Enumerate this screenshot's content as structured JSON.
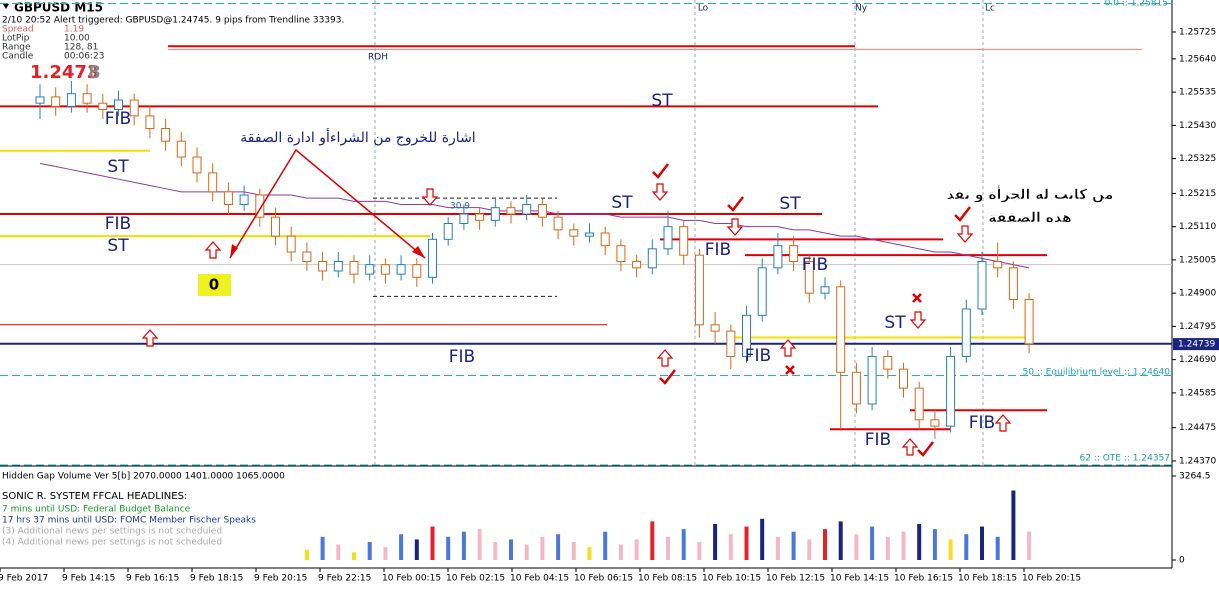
{
  "header": {
    "symbol": "GBPUSD  M15",
    "alert": "2/10 20:52  Alert triggered: GBPUSD@1.24745.  9 pips from Trendline 33393.",
    "rows": [
      [
        "Spread",
        "1.19"
      ],
      [
        "LotPip",
        "10.00"
      ],
      [
        "Range",
        "128, 81"
      ],
      [
        "Candle",
        "00:06:23"
      ]
    ],
    "price_main": "1.2473",
    "price_pip": "8"
  },
  "chart_data": {
    "type": "candlestick",
    "up_color": "#2a7fc1",
    "down_color": "#d2691e",
    "ma_color": "#8e3a9e",
    "ylim": [
      1.24354,
      1.25826
    ],
    "yticks": [
      1.25725,
      {
        "value": 1.2564,
        "label": "1.25640"
      },
      1.25535,
      {
        "value": 1.2543,
        "label": "1.25430"
      },
      1.25325,
      1.25215,
      {
        "value": 1.2511,
        "label": "1.25110"
      },
      1.25005,
      {
        "value": 1.249,
        "label": "1.24900"
      },
      1.24795,
      {
        "value": 1.2469,
        "label": "1.24690"
      },
      1.24585,
      1.24475,
      {
        "value": 1.2437,
        "label": "1.24370"
      }
    ],
    "current_price": 1.24739,
    "x": [
      "9 Feb 2017",
      "9 Feb 14:15",
      "9 Feb 16:15",
      "9 Feb 18:15",
      "9 Feb 20:15",
      "9 Feb 22:15",
      "10 Feb 00:15",
      "10 Feb 02:15",
      "10 Feb 04:15",
      "10 Feb 06:15",
      "10 Feb 08:15",
      "10 Feb 10:15",
      "10 Feb 12:15",
      "10 Feb 14:15",
      "10 Feb 16:15",
      "10 Feb 18:15",
      "10 Feb 20:15"
    ],
    "ohlc": [
      [
        1.255,
        1.2556,
        1.2545,
        1.2552
      ],
      [
        1.2552,
        1.2555,
        1.2546,
        1.2549
      ],
      [
        1.2549,
        1.2557,
        1.2547,
        1.2553
      ],
      [
        1.2553,
        1.2556,
        1.2547,
        1.255
      ],
      [
        1.255,
        1.2553,
        1.2545,
        1.2548
      ],
      [
        1.2548,
        1.2554,
        1.2546,
        1.2551
      ],
      [
        1.2551,
        1.2553,
        1.2543,
        1.2546
      ],
      [
        1.2546,
        1.2549,
        1.2539,
        1.2542
      ],
      [
        1.2542,
        1.2545,
        1.2535,
        1.2538
      ],
      [
        1.2538,
        1.2541,
        1.253,
        1.2533
      ],
      [
        1.2533,
        1.2536,
        1.2525,
        1.2528
      ],
      [
        1.2528,
        1.2531,
        1.2519,
        1.2522
      ],
      [
        1.2522,
        1.2525,
        1.2515,
        1.2518
      ],
      [
        1.2518,
        1.2524,
        1.2516,
        1.2521
      ],
      [
        1.2521,
        1.2523,
        1.2511,
        1.2514
      ],
      [
        1.2514,
        1.2517,
        1.2505,
        1.2508
      ],
      [
        1.2508,
        1.2511,
        1.25,
        1.2503
      ],
      [
        1.2503,
        1.2506,
        1.2497,
        1.25
      ],
      [
        1.25,
        1.2503,
        1.2494,
        1.2497
      ],
      [
        1.2497,
        1.2503,
        1.2495,
        1.25
      ],
      [
        1.25,
        1.2502,
        1.2493,
        1.2496
      ],
      [
        1.2496,
        1.2502,
        1.2494,
        1.2499
      ],
      [
        1.2499,
        1.2501,
        1.2493,
        1.2496
      ],
      [
        1.2496,
        1.2502,
        1.2494,
        1.2499
      ],
      [
        1.2499,
        1.2501,
        1.2492,
        1.2495
      ],
      [
        1.2495,
        1.2509,
        1.2493,
        1.2507
      ],
      [
        1.2507,
        1.2514,
        1.2505,
        1.2512
      ],
      [
        1.2512,
        1.2518,
        1.251,
        1.2515
      ],
      [
        1.2515,
        1.2517,
        1.251,
        1.2513
      ],
      [
        1.2513,
        1.252,
        1.2511,
        1.2517
      ],
      [
        1.2517,
        1.2519,
        1.2512,
        1.2515
      ],
      [
        1.2515,
        1.2521,
        1.2513,
        1.2518
      ],
      [
        1.2518,
        1.252,
        1.2511,
        1.2514
      ],
      [
        1.2514,
        1.2516,
        1.2507,
        1.251
      ],
      [
        1.251,
        1.2512,
        1.2505,
        1.2508
      ],
      [
        1.2508,
        1.2512,
        1.2506,
        1.2509
      ],
      [
        1.2509,
        1.2511,
        1.2502,
        1.2505
      ],
      [
        1.2505,
        1.2507,
        1.2497,
        1.25
      ],
      [
        1.25,
        1.2502,
        1.2495,
        1.2498
      ],
      [
        1.2498,
        1.2507,
        1.2496,
        1.2504
      ],
      [
        1.2504,
        1.2516,
        1.2502,
        1.2511
      ],
      [
        1.2511,
        1.2513,
        1.2499,
        1.2502
      ],
      [
        1.2502,
        1.2504,
        1.2476,
        1.248
      ],
      [
        1.248,
        1.2484,
        1.2474,
        1.2478
      ],
      [
        1.2478,
        1.248,
        1.2466,
        1.247
      ],
      [
        1.247,
        1.2486,
        1.2468,
        1.2483
      ],
      [
        1.2483,
        1.2501,
        1.2481,
        1.2498
      ],
      [
        1.2498,
        1.2509,
        1.2496,
        1.2505
      ],
      [
        1.2505,
        1.2508,
        1.2497,
        1.25
      ],
      [
        1.25,
        1.2502,
        1.2487,
        1.249
      ],
      [
        1.249,
        1.2495,
        1.2488,
        1.2492
      ],
      [
        1.2492,
        1.2494,
        1.2447,
        1.2465
      ],
      [
        1.2465,
        1.2468,
        1.2452,
        1.2455
      ],
      [
        1.2455,
        1.2473,
        1.2453,
        1.247
      ],
      [
        1.247,
        1.2472,
        1.2463,
        1.2466
      ],
      [
        1.2466,
        1.2468,
        1.2457,
        1.246
      ],
      [
        1.246,
        1.2462,
        1.2447,
        1.245
      ],
      [
        1.245,
        1.2453,
        1.2444,
        1.2448
      ],
      [
        1.2448,
        1.2473,
        1.2446,
        1.247
      ],
      [
        1.247,
        1.2488,
        1.2468,
        1.2485
      ],
      [
        1.2485,
        1.2503,
        1.2483,
        1.25
      ],
      [
        1.25,
        1.2506,
        1.2495,
        1.2498
      ],
      [
        1.2498,
        1.25,
        1.2485,
        1.2488
      ],
      [
        1.2488,
        1.249,
        1.2471,
        1.2474
      ]
    ],
    "ma": [
      1.2531,
      1.253,
      1.2529,
      1.2528,
      1.2527,
      1.2526,
      1.2525,
      1.2524,
      1.2523,
      1.2522,
      1.2522,
      1.2522,
      1.2522,
      1.2522,
      1.2521,
      1.2521,
      1.2521,
      1.252,
      1.252,
      1.252,
      1.2519,
      1.2519,
      1.2519,
      1.2518,
      1.2518,
      1.2518,
      1.2517,
      1.2517,
      1.2517,
      1.2516,
      1.2516,
      1.2516,
      1.2516,
      1.2515,
      1.2515,
      1.2515,
      1.2515,
      1.2514,
      1.2514,
      1.2514,
      1.2514,
      1.2513,
      1.2513,
      1.2512,
      1.2512,
      1.2511,
      1.2511,
      1.2511,
      1.251,
      1.251,
      1.2509,
      1.2508,
      1.2508,
      1.2507,
      1.2506,
      1.2505,
      1.2504,
      1.2503,
      1.2503,
      1.2502,
      1.2501,
      1.25,
      1.2499,
      1.2498
    ],
    "levels": [
      {
        "price": 1.2568,
        "color": "#e00000"
      },
      {
        "price": 1.2567,
        "color": "#f08070"
      },
      {
        "price": 1.2549,
        "color": "#e00000"
      },
      {
        "price": 1.2535,
        "color": "#f0e000"
      },
      {
        "price": 1.2515,
        "color": "#e00000"
      },
      {
        "price": 1.2508,
        "color": "#f0e000"
      },
      {
        "price": 1.2507,
        "color": "#e00000"
      },
      {
        "price": 1.2502,
        "color": "#e00000"
      },
      {
        "price": 1.2499,
        "color": "#c8c8c8"
      },
      {
        "price": 1.248,
        "color": "#e00000"
      },
      {
        "price": 1.2476,
        "color": "#f0e000"
      },
      {
        "price": 1.2474,
        "color": "#1a237e"
      },
      {
        "price": 1.2464,
        "color": "#20b0c0"
      },
      {
        "price": 1.2453,
        "color": "#e00000"
      },
      {
        "price": 1.2447,
        "color": "#e00000"
      },
      {
        "price": 1.24357,
        "color": "#20b0c0"
      },
      {
        "price": 1.25815,
        "color": "#20b0c0"
      },
      {
        "price": 1.252,
        "color": "#202020"
      },
      {
        "price": 1.2489,
        "color": "#202020"
      }
    ],
    "annotations": [
      "FIB",
      "ST",
      "FIB",
      "ST",
      "ST",
      "ST",
      "ST",
      "FIB",
      "FIB",
      "FIB",
      "FIB",
      "ST",
      "FIB",
      "FIB",
      "اشارة للخروج من الشراءأو ادارة الصفقة",
      "من كانت له الجرأة و نفذ",
      "هذه الصفقة",
      "RDH",
      "30.9",
      "0",
      "Lo",
      "Ny",
      "Lc",
      "0.0 :: 1.25815",
      "50 :: Equilibrium level :: 1.24640",
      "62 :: OTE :: 1.24357"
    ]
  },
  "indicator": {
    "title": "Hidden Gap Volume Ver 5[b] 2070.0000 1401.0000 1065.0000",
    "headline": "SONIC R. SYSTEM  FFCAL HEADLINES:",
    "news": [
      "7 mins until USD: Federal Budget Balance",
      "17 hrs 37 mins until USD: FOMC Member Fischer Speaks",
      "(3)  Additional news per settings is not scheduled",
      "(4)  Additional news per settings is not scheduled"
    ],
    "ylim": [
      0,
      3264.5
    ],
    "yticks": [
      3264.5,
      0
    ],
    "volume": [
      400,
      900,
      600,
      300,
      700,
      500,
      1000,
      800,
      1300,
      900,
      1100,
      1200,
      700,
      800,
      600,
      900,
      1000,
      700,
      500,
      1100,
      600,
      800,
      1500,
      900,
      1200,
      700,
      1400,
      1000,
      1300,
      1600,
      900,
      1100,
      800,
      1200,
      1500,
      1000,
      1300,
      900,
      1100,
      1400,
      1200,
      800,
      1000,
      1300,
      900,
      2700,
      1100
    ],
    "colors": [
      "#f0e020",
      "#4a78d8",
      "#f2b8c6",
      "#f0e020",
      "#4a78d8",
      "#f2b8c6",
      "#4a78d8",
      "#1a237e",
      "#e8202a",
      "#4a78d8",
      "#4a78d8",
      "#f2b8c6",
      "#f2b8c6",
      "#4a78d8",
      "#f2b8c6",
      "#f2b8c6",
      "#4a78d8",
      "#f2b8c6",
      "#f0e020",
      "#4a78d8",
      "#f2b8c6",
      "#f2b8c6",
      "#e8202a",
      "#f2b8c6",
      "#4a78d8",
      "#f2b8c6",
      "#1a237e",
      "#f2b8c6",
      "#e8202a",
      "#1a237e",
      "#f2b8c6",
      "#4a78d8",
      "#f2b8c6",
      "#e8202a",
      "#1a237e",
      "#f2b8c6",
      "#4a78d8",
      "#f2b8c6",
      "#f2b8c6",
      "#1a237e",
      "#4a78d8",
      "#f0e020",
      "#4a78d8",
      "#1a237e",
      "#4a78d8",
      "#1a237e",
      "#f2b8c6"
    ]
  }
}
